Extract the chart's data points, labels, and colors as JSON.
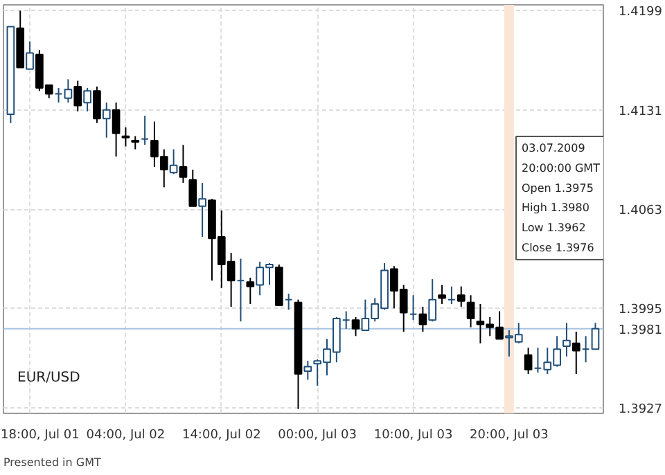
{
  "chart_data": {
    "type": "candlestick",
    "grid": true,
    "colors": [
      "#1f4e79",
      "#000000",
      "#1f4e79",
      "#000000",
      "#000000",
      "#1f4e79",
      "#1f4e79",
      "#000000",
      "#1f4e79",
      "#000000",
      "#1f4e79",
      "#000000",
      "#000000",
      "#000000",
      "#1f4e79",
      "#000000",
      "#000000",
      "#1f4e79",
      "#000000",
      "#000000",
      "#1f4e79",
      "#000000",
      "#000000",
      "#000000",
      "#1f4e79",
      "#000000",
      "#1f4e79",
      "#1f4e79",
      "#000000",
      "#1f4e79",
      "#000000",
      "#1f4e79",
      "#1f4e79",
      "#1f4e79",
      "#1f4e79",
      "#1f4e79",
      "#000000",
      "#1f4e79",
      "#1f4e79",
      "#1f4e79",
      "#000000",
      "#000000",
      "#1f4e79",
      "#000000",
      "#1f4e79",
      "#000000",
      "#1f4e79",
      "#000000",
      "#000000",
      "#000000",
      "#000000",
      "#000000",
      "#1f4e79",
      "#1f4e79",
      "#000000",
      "#1f4e79",
      "#1f4e79",
      "#1f4e79",
      "#1f4e79",
      "#000000",
      "#1f4e79",
      "#1f4e79"
    ],
    "x": [
      "2009-07-01T16:00",
      "2009-07-01T17:00",
      "2009-07-01T18:00",
      "2009-07-01T19:00",
      "2009-07-01T20:00",
      "2009-07-01T21:00",
      "2009-07-01T22:00",
      "2009-07-01T23:00",
      "2009-07-02T00:00",
      "2009-07-02T01:00",
      "2009-07-02T02:00",
      "2009-07-02T03:00",
      "2009-07-02T04:00",
      "2009-07-02T05:00",
      "2009-07-02T06:00",
      "2009-07-02T07:00",
      "2009-07-02T08:00",
      "2009-07-02T09:00",
      "2009-07-02T10:00",
      "2009-07-02T11:00",
      "2009-07-02T12:00",
      "2009-07-02T13:00",
      "2009-07-02T14:00",
      "2009-07-02T15:00",
      "2009-07-02T16:00",
      "2009-07-02T17:00",
      "2009-07-02T18:00",
      "2009-07-02T19:00",
      "2009-07-02T20:00",
      "2009-07-02T21:00",
      "2009-07-02T22:00",
      "2009-07-02T23:00",
      "2009-07-03T00:00",
      "2009-07-03T01:00",
      "2009-07-03T02:00",
      "2009-07-03T03:00",
      "2009-07-03T04:00",
      "2009-07-03T05:00",
      "2009-07-03T06:00",
      "2009-07-03T07:00",
      "2009-07-03T08:00",
      "2009-07-03T09:00",
      "2009-07-03T10:00",
      "2009-07-03T11:00",
      "2009-07-03T12:00",
      "2009-07-03T13:00",
      "2009-07-03T14:00",
      "2009-07-03T15:00",
      "2009-07-03T16:00",
      "2009-07-03T17:00",
      "2009-07-03T18:00",
      "2009-07-03T19:00",
      "2009-07-03T20:00",
      "2009-07-03T21:00",
      "2009-07-03T22:00",
      "2009-07-03T23:00",
      "2009-07-04T00:00",
      "2009-07-04T01:00",
      "2009-07-04T02:00",
      "2009-07-04T03:00",
      "2009-07-04T04:00",
      "2009-07-04T05:00"
    ],
    "ohlc": [
      [
        1.4128,
        1.4188,
        1.4122,
        1.4188
      ],
      [
        1.4187,
        1.4199,
        1.416,
        1.416
      ],
      [
        1.4159,
        1.4178,
        1.4159,
        1.417
      ],
      [
        1.4169,
        1.4172,
        1.4144,
        1.4146
      ],
      [
        1.4148,
        1.4148,
        1.4139,
        1.4142
      ],
      [
        1.4142,
        1.4146,
        1.4136,
        1.4142
      ],
      [
        1.4139,
        1.4152,
        1.4136,
        1.4145
      ],
      [
        1.4147,
        1.4151,
        1.413,
        1.4134
      ],
      [
        1.4136,
        1.4146,
        1.413,
        1.4144
      ],
      [
        1.4144,
        1.4147,
        1.4122,
        1.4125
      ],
      [
        1.4125,
        1.4136,
        1.4112,
        1.4131
      ],
      [
        1.4131,
        1.4136,
        1.4099,
        1.4115
      ],
      [
        1.4113,
        1.4119,
        1.4106,
        1.4112
      ],
      [
        1.411,
        1.4113,
        1.4104,
        1.4109
      ],
      [
        1.4111,
        1.4127,
        1.4107,
        1.4111
      ],
      [
        1.411,
        1.4123,
        1.4092,
        1.4099
      ],
      [
        1.4099,
        1.4104,
        1.4078,
        1.409
      ],
      [
        1.4088,
        1.4104,
        1.4087,
        1.4093
      ],
      [
        1.4092,
        1.4107,
        1.4081,
        1.4085
      ],
      [
        1.4083,
        1.409,
        1.4065,
        1.4065
      ],
      [
        1.4065,
        1.4081,
        1.4044,
        1.407
      ],
      [
        1.4069,
        1.407,
        1.4014,
        1.4043
      ],
      [
        1.4044,
        1.4062,
        1.4009,
        1.4025
      ],
      [
        1.4027,
        1.4033,
        1.3996,
        1.4014
      ],
      [
        1.4014,
        1.4029,
        1.3986,
        1.4014
      ],
      [
        1.4013,
        1.4016,
        1.3998,
        1.401
      ],
      [
        1.4011,
        1.4027,
        1.4004,
        1.4023
      ],
      [
        1.4023,
        1.4026,
        1.4011,
        1.4025
      ],
      [
        1.4023,
        1.4025,
        1.3997,
        1.3997
      ],
      [
        1.4001,
        1.4005,
        1.3994,
        1.4001
      ],
      [
        1.3999,
        1.4001,
        1.3926,
        1.395
      ],
      [
        1.3952,
        1.3959,
        1.3946,
        1.3955
      ],
      [
        1.3957,
        1.396,
        1.3942,
        1.3959
      ],
      [
        1.3958,
        1.3974,
        1.3949,
        1.3967
      ],
      [
        1.3965,
        1.3989,
        1.3958,
        1.3988
      ],
      [
        1.3987,
        1.3993,
        1.3981,
        1.3987
      ],
      [
        1.3987,
        1.3989,
        1.3976,
        1.3981
      ],
      [
        1.398,
        1.4001,
        1.398,
        1.3988
      ],
      [
        1.3988,
        1.4002,
        1.3986,
        1.3998
      ],
      [
        1.3995,
        1.4026,
        1.3994,
        1.4021
      ],
      [
        1.4022,
        1.4024,
        1.3995,
        1.4007
      ],
      [
        1.4008,
        1.4011,
        1.3979,
        1.3992
      ],
      [
        1.3991,
        1.4004,
        1.3987,
        1.3991
      ],
      [
        1.3991,
        1.3996,
        1.3979,
        1.3984
      ],
      [
        1.3987,
        1.4015,
        1.3986,
        1.4001
      ],
      [
        1.4004,
        1.4011,
        1.3998,
        1.4002
      ],
      [
        1.4001,
        1.401,
        1.3998,
        1.4001
      ],
      [
        1.4004,
        1.401,
        1.3996,
        1.4
      ],
      [
        1.3999,
        1.4004,
        1.3982,
        1.3988
      ],
      [
        1.3986,
        1.3998,
        1.3971,
        1.3984
      ],
      [
        1.3984,
        1.3989,
        1.3976,
        1.3982
      ],
      [
        1.3982,
        1.3993,
        1.3974,
        1.3974
      ],
      [
        1.3975,
        1.398,
        1.3962,
        1.3976
      ],
      [
        1.3972,
        1.3985,
        1.3971,
        1.3977
      ],
      [
        1.3963,
        1.3968,
        1.395,
        1.3953
      ],
      [
        1.3954,
        1.3968,
        1.3951,
        1.3954
      ],
      [
        1.3953,
        1.3968,
        1.395,
        1.3958
      ],
      [
        1.3956,
        1.3976,
        1.3955,
        1.3967
      ],
      [
        1.3969,
        1.3985,
        1.3962,
        1.3973
      ],
      [
        1.3971,
        1.3979,
        1.395,
        1.3966
      ],
      [
        1.3967,
        1.3976,
        1.3958,
        1.3967
      ],
      [
        1.3967,
        1.3985,
        1.3967,
        1.3981
      ]
    ],
    "xlim": [
      "2009-07-01T15:15",
      "2009-07-04T05:50"
    ],
    "xticks": [
      {
        "value": "2009-07-01T18:00",
        "label": "18:00, Jul 01"
      },
      {
        "value": "2009-07-02T04:00",
        "label": "04:00, Jul 02"
      },
      {
        "value": "2009-07-02T14:00",
        "label": "14:00, Jul 02"
      },
      {
        "value": "2009-07-03T00:00",
        "label": "00:00, Jul 03"
      },
      {
        "value": "2009-07-03T10:00",
        "label": "10:00, Jul 03"
      },
      {
        "value": "2009-07-03T20:00",
        "label": "20:00, Jul 03"
      }
    ],
    "ylim": [
      1.3923,
      1.4203
    ],
    "yticks": [
      1.3927,
      1.3995,
      1.4063,
      1.4131,
      1.4199
    ],
    "ref_lines": [
      {
        "axis": "y",
        "value": 1.3981,
        "label": "1.3981",
        "color": "#a9c4e0"
      }
    ],
    "bands": [
      {
        "axis": "x",
        "from": "2009-07-03T19:30",
        "to": "2009-07-03T20:30",
        "color": "#fbe5d6"
      }
    ],
    "annotations": [
      "EUR/USD",
      "Presented in GMT",
      "03.07.2009",
      "20:00:00 GMT",
      "Open  1.3975",
      "High  1.3980",
      "Low   1.3962",
      "Close 1.3976"
    ]
  }
}
